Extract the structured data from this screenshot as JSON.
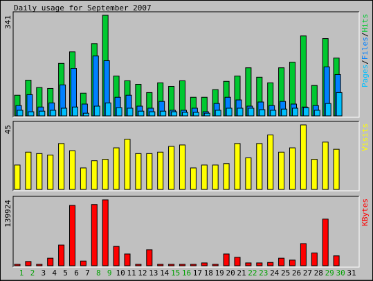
{
  "title": "Daily usage for September 2007",
  "legend_separator": "/",
  "chart_data": [
    {
      "type": "bar",
      "ylim": [
        0,
        341
      ],
      "yticks": [
        341
      ],
      "legend_position": "right",
      "series": [
        {
          "name": "Hits",
          "color": "#00c830",
          "values": [
            70,
            121,
            96,
            93,
            178,
            217,
            77,
            245,
            341,
            135,
            119,
            107,
            79,
            112,
            100,
            119,
            63,
            63,
            89,
            117,
            135,
            163,
            131,
            112,
            163,
            182,
            271,
            103,
            262,
            196,
            null
          ]
        },
        {
          "name": "Files",
          "color": "#0080ff",
          "values": [
            35,
            72,
            30,
            44,
            105,
            161,
            40,
            203,
            187,
            63,
            70,
            33,
            26,
            49,
            19,
            19,
            26,
            14,
            42,
            63,
            54,
            33,
            47,
            35,
            49,
            40,
            30,
            35,
            166,
            140,
            null
          ]
        },
        {
          "name": "Pages",
          "color": "#00c0ff",
          "values": [
            19,
            14,
            16,
            19,
            26,
            30,
            9,
            33,
            44,
            28,
            26,
            16,
            14,
            16,
            14,
            12,
            12,
            9,
            19,
            26,
            26,
            26,
            21,
            19,
            23,
            26,
            28,
            19,
            42,
            79,
            null
          ]
        }
      ]
    },
    {
      "type": "bar",
      "ylim": [
        0,
        45
      ],
      "yticks": [
        45
      ],
      "legend_position": "right",
      "series": [
        {
          "name": "Visits",
          "color": "#ffff00",
          "values": [
            17,
            26,
            25,
            24,
            32,
            27,
            15,
            20,
            21,
            29,
            35,
            25,
            25,
            26,
            30,
            31,
            15,
            17,
            17,
            18,
            32,
            22,
            32,
            38,
            26,
            29,
            45,
            21,
            33,
            28,
            null
          ]
        }
      ]
    },
    {
      "type": "bar",
      "ylim": [
        0,
        139924
      ],
      "yticks": [
        139924
      ],
      "legend_position": "right",
      "categories": [
        "1",
        "2",
        "3",
        "4",
        "5",
        "6",
        "7",
        "8",
        "9",
        "10",
        "11",
        "12",
        "13",
        "14",
        "15",
        "16",
        "17",
        "18",
        "19",
        "20",
        "21",
        "22",
        "23",
        "24",
        "25",
        "26",
        "27",
        "28",
        "29",
        "30",
        "31"
      ],
      "category_colors": [
        "#00a000",
        "#00a000",
        "#000000",
        "#000000",
        "#000000",
        "#000000",
        "#000000",
        "#00a000",
        "#00a000",
        "#000000",
        "#000000",
        "#000000",
        "#000000",
        "#000000",
        "#00a000",
        "#00a000",
        "#000000",
        "#000000",
        "#000000",
        "#000000",
        "#000000",
        "#00a000",
        "#00a000",
        "#000000",
        "#000000",
        "#000000",
        "#000000",
        "#000000",
        "#00a000",
        "#00a000",
        "#000000"
      ],
      "series": [
        {
          "name": "KBytes",
          "color": "#ff0000",
          "values": [
            3000,
            9000,
            3000,
            16000,
            44000,
            128000,
            10000,
            130000,
            139924,
            41000,
            25000,
            3000,
            34000,
            3000,
            3000,
            3000,
            3000,
            6000,
            3000,
            25000,
            18000,
            6000,
            6000,
            7000,
            16000,
            12000,
            47000,
            27000,
            99000,
            21000,
            null
          ]
        }
      ]
    }
  ]
}
